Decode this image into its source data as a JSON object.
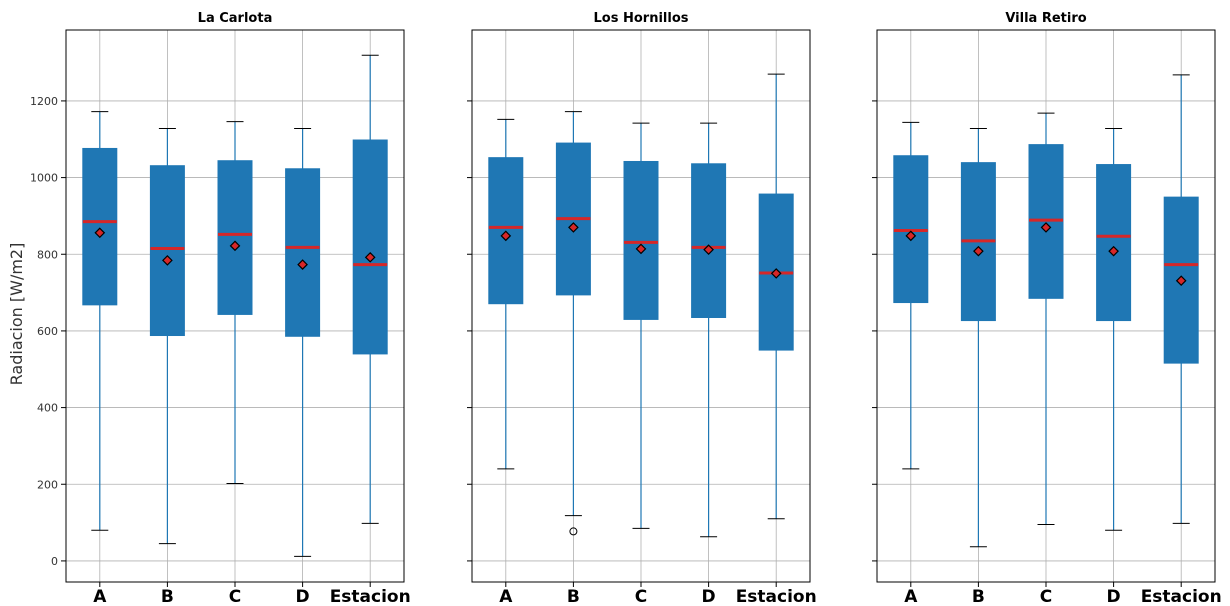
{
  "chart_data": {
    "type": "box",
    "ylabel": "Radiacion [W/m2]",
    "ylim": [
      -55,
      1385
    ],
    "yticks": [
      0,
      200,
      400,
      600,
      800,
      1000,
      1200
    ],
    "categories": [
      "A",
      "B",
      "C",
      "D",
      "Estacion"
    ],
    "grid": true,
    "colors": {
      "box": "#1f77b4",
      "median": "#d62728",
      "whisker": "#1f77b4",
      "cap": "#000000",
      "mean_fill": "#d62728",
      "mean_edge": "#000000",
      "grid": "#b0b0b0"
    },
    "panels": [
      {
        "title": "La Carlota",
        "boxes": [
          {
            "category": "A",
            "whislo": 80,
            "q1": 668,
            "med": 885,
            "q3": 1076,
            "whishi": 1172,
            "mean": 856,
            "fliers": []
          },
          {
            "category": "B",
            "whislo": 45,
            "q1": 588,
            "med": 815,
            "q3": 1031,
            "whishi": 1128,
            "mean": 784,
            "fliers": []
          },
          {
            "category": "C",
            "whislo": 202,
            "q1": 643,
            "med": 852,
            "q3": 1044,
            "whishi": 1146,
            "mean": 822,
            "fliers": []
          },
          {
            "category": "D",
            "whislo": 12,
            "q1": 586,
            "med": 818,
            "q3": 1023,
            "whishi": 1128,
            "mean": 773,
            "fliers": []
          },
          {
            "category": "Estacion",
            "whislo": 98,
            "q1": 540,
            "med": 773,
            "q3": 1098,
            "whishi": 1319,
            "mean": 792,
            "fliers": []
          }
        ]
      },
      {
        "title": "Los Hornillos",
        "boxes": [
          {
            "category": "A",
            "whislo": 240,
            "q1": 671,
            "med": 870,
            "q3": 1052,
            "whishi": 1152,
            "mean": 848,
            "fliers": []
          },
          {
            "category": "B",
            "whislo": 118,
            "q1": 694,
            "med": 893,
            "q3": 1090,
            "whishi": 1172,
            "mean": 870,
            "fliers": [
              77
            ]
          },
          {
            "category": "C",
            "whislo": 85,
            "q1": 630,
            "med": 831,
            "q3": 1042,
            "whishi": 1142,
            "mean": 814,
            "fliers": []
          },
          {
            "category": "D",
            "whislo": 63,
            "q1": 635,
            "med": 818,
            "q3": 1036,
            "whishi": 1142,
            "mean": 812,
            "fliers": []
          },
          {
            "category": "Estacion",
            "whislo": 110,
            "q1": 550,
            "med": 751,
            "q3": 957,
            "whishi": 1270,
            "mean": 750,
            "fliers": []
          }
        ]
      },
      {
        "title": "Villa Retiro",
        "boxes": [
          {
            "category": "A",
            "whislo": 240,
            "q1": 674,
            "med": 862,
            "q3": 1057,
            "whishi": 1144,
            "mean": 848,
            "fliers": []
          },
          {
            "category": "B",
            "whislo": 37,
            "q1": 627,
            "med": 835,
            "q3": 1039,
            "whishi": 1128,
            "mean": 808,
            "fliers": []
          },
          {
            "category": "C",
            "whislo": 95,
            "q1": 685,
            "med": 889,
            "q3": 1086,
            "whishi": 1168,
            "mean": 870,
            "fliers": []
          },
          {
            "category": "D",
            "whislo": 80,
            "q1": 627,
            "med": 847,
            "q3": 1034,
            "whishi": 1128,
            "mean": 808,
            "fliers": []
          },
          {
            "category": "Estacion",
            "whislo": 98,
            "q1": 516,
            "med": 773,
            "q3": 949,
            "whishi": 1268,
            "mean": 731,
            "fliers": []
          }
        ]
      }
    ]
  }
}
